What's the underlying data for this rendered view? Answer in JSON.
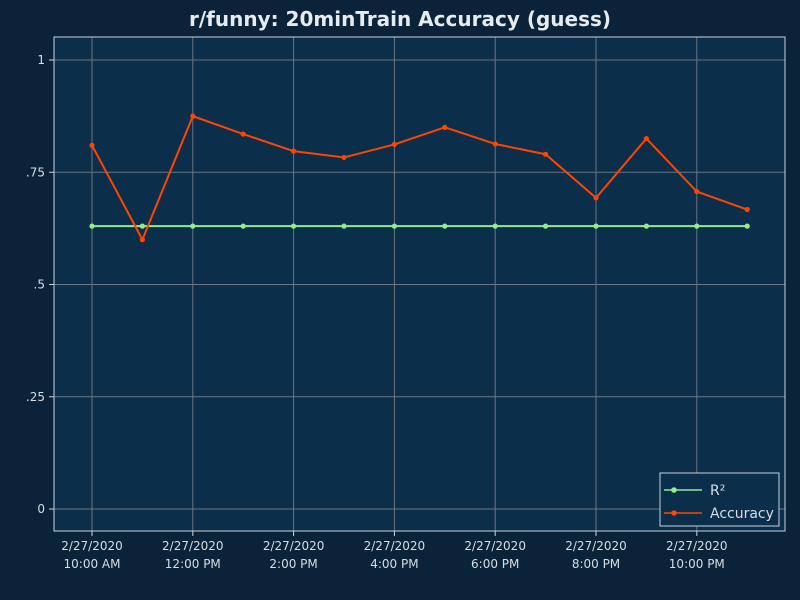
{
  "colors": {
    "background": "#0a2338",
    "plot_background": "#0b2e4b",
    "grid": "#6b7680",
    "frame": "#c9d3dc",
    "text": "#d6dde3",
    "title": "#e6ebef"
  },
  "chart_data": {
    "type": "line",
    "title": "r/funny: 20minTrain Accuracy (guess)",
    "xlabel": "",
    "ylabel": "",
    "x": [
      "2020-02-27T10:00",
      "2020-02-27T11:00",
      "2020-02-27T12:00",
      "2020-02-27T13:00",
      "2020-02-27T14:00",
      "2020-02-27T15:00",
      "2020-02-27T16:00",
      "2020-02-27T17:00",
      "2020-02-27T18:00",
      "2020-02-27T19:00",
      "2020-02-27T20:00",
      "2020-02-27T21:00",
      "2020-02-27T22:00",
      "2020-02-27T23:00"
    ],
    "x_ticks": [
      {
        "date": "2/27/2020",
        "time": "10:00 AM"
      },
      {
        "date": "2/27/2020",
        "time": "12:00 PM"
      },
      {
        "date": "2/27/2020",
        "time": "2:00 PM"
      },
      {
        "date": "2/27/2020",
        "time": "4:00 PM"
      },
      {
        "date": "2/27/2020",
        "time": "6:00 PM"
      },
      {
        "date": "2/27/2020",
        "time": "8:00 PM"
      },
      {
        "date": "2/27/2020",
        "time": "10:00 PM"
      }
    ],
    "y_ticks": [
      "0",
      ".25",
      ".5",
      ".75",
      "1"
    ],
    "ylim": [
      -0.05,
      1.05
    ],
    "grid": true,
    "legend_position": "bottom-right",
    "series": [
      {
        "name": "R²",
        "color": "#90ee90",
        "values": [
          0.63,
          0.63,
          0.63,
          0.63,
          0.63,
          0.63,
          0.63,
          0.63,
          0.63,
          0.63,
          0.63,
          0.63,
          0.63,
          0.63
        ]
      },
      {
        "name": "Accuracy",
        "color": "#ff4500",
        "values": [
          0.81,
          0.6,
          0.875,
          0.835,
          0.797,
          0.783,
          0.812,
          0.85,
          0.813,
          0.79,
          0.693,
          0.825,
          0.707,
          0.667
        ]
      }
    ]
  }
}
